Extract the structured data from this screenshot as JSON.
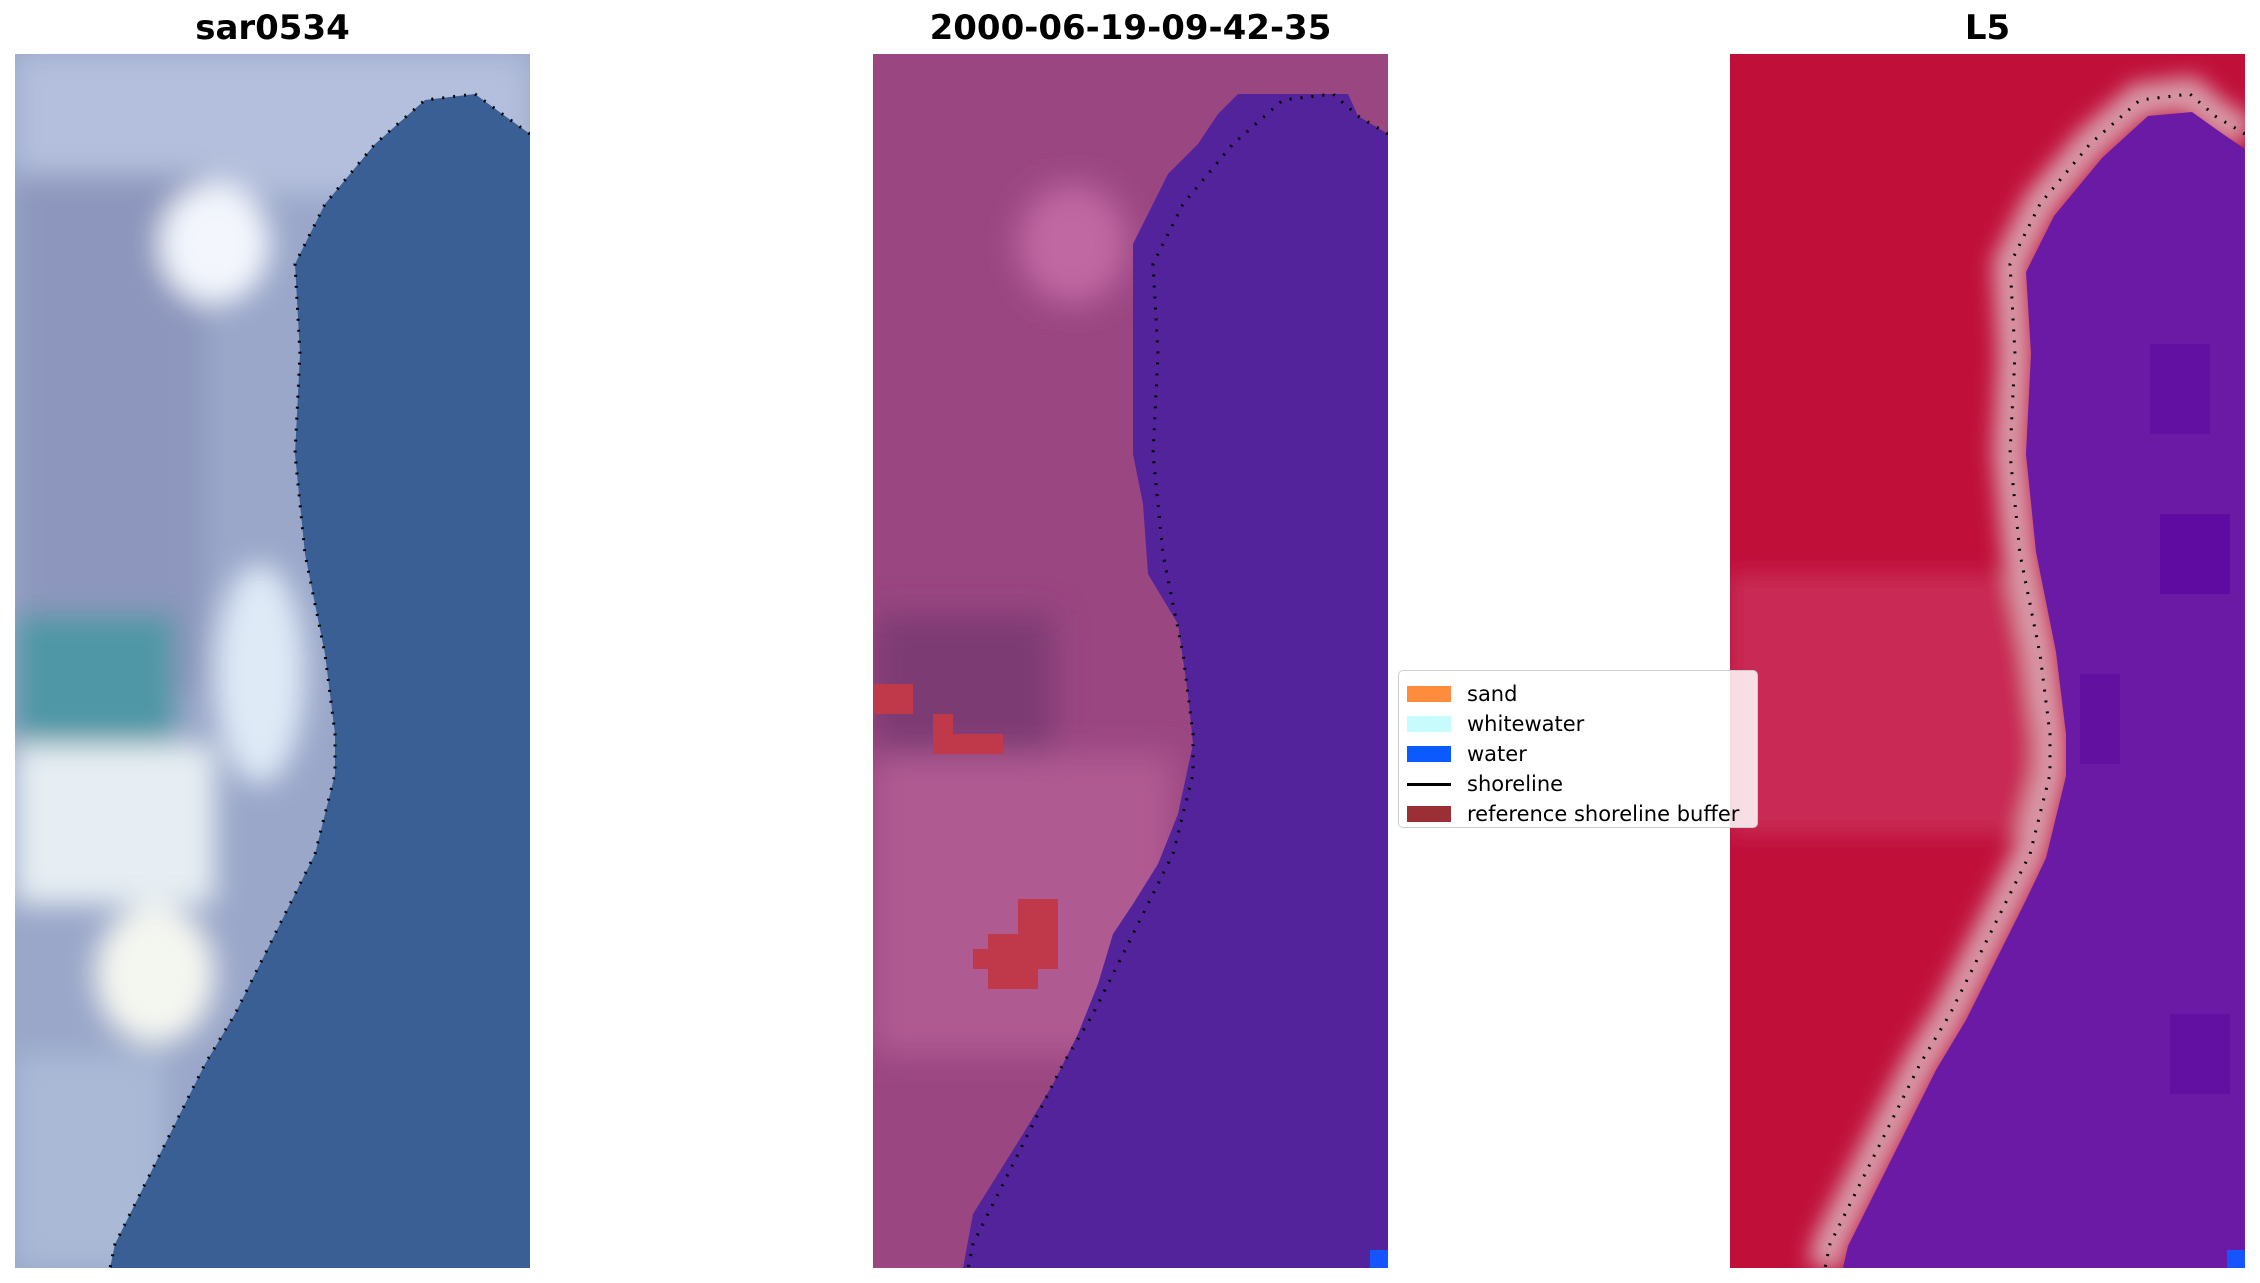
{
  "panels": [
    {
      "title": "sar0534"
    },
    {
      "title": "2000-06-19-09-42-35"
    },
    {
      "title": "L5"
    }
  ],
  "legend": {
    "items": [
      {
        "label": "sand",
        "type": "patch",
        "color": "#ff8c3c"
      },
      {
        "label": "whitewater",
        "type": "patch",
        "color": "#c8fcfc"
      },
      {
        "label": "water",
        "type": "patch",
        "color": "#0a5aff"
      },
      {
        "label": "shoreline",
        "type": "line",
        "color": "#000000"
      },
      {
        "label": "reference shoreline buffer",
        "type": "patch",
        "color": "#9b2f36"
      }
    ]
  },
  "colors": {
    "rgb_water": "#3a5f95",
    "rgb_land": "#9aa7c9",
    "rgb_whitewater": "#eaf2fb",
    "rgb_teal": "#4f97a6",
    "classified_land": "#9a4681",
    "classified_water": "#53239b",
    "classified_buffer": "#c0394a",
    "classified_water_pixel": "#1455ff",
    "mndwi_land": "#c0103a",
    "mndwi_water": "#6a1aa5",
    "mndwi_transition": "#d89aa8"
  }
}
